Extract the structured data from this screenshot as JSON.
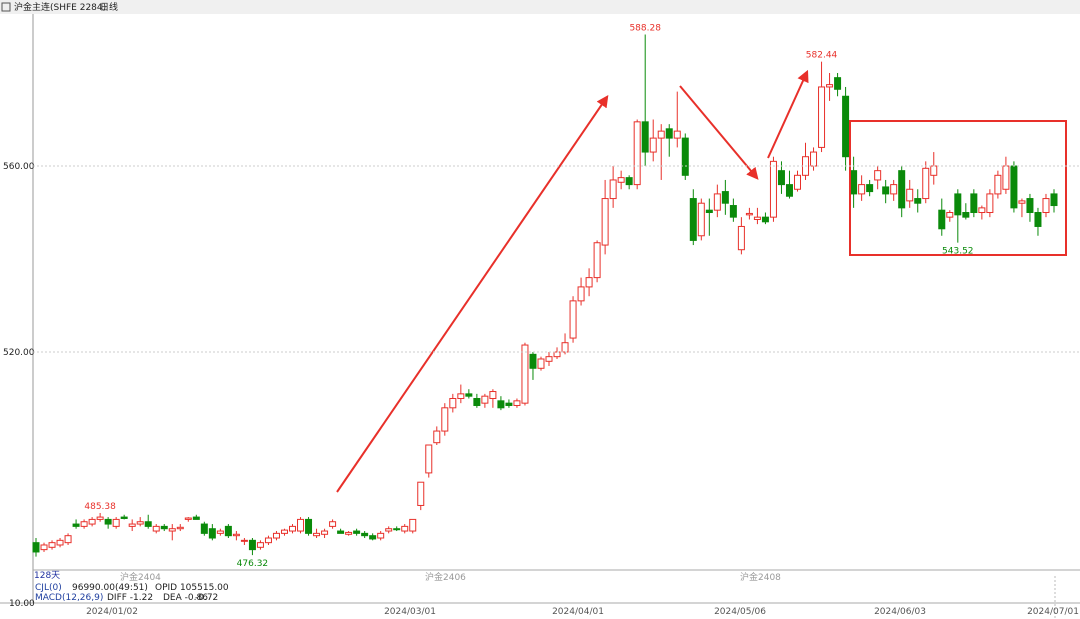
{
  "header": {
    "symbol": "沪金主连(SHFE 2284)",
    "period": "日线"
  },
  "chart_data": {
    "type": "candlestick",
    "ylim": [
      473.12,
      592.69
    ],
    "yticks": [
      {
        "value": 560,
        "label": "560.00"
      },
      {
        "value": 520,
        "label": "520.00"
      }
    ],
    "grid": true,
    "up_color": "#e8302a",
    "down_color": "#0a8a0a",
    "ohlc": [
      [
        479,
        480,
        476,
        477
      ],
      [
        477.5,
        479,
        477,
        478.5
      ],
      [
        478,
        479.5,
        477.5,
        479
      ],
      [
        478.5,
        480,
        478,
        479.5
      ],
      [
        479,
        481,
        478.5,
        480.5
      ],
      [
        483,
        484,
        482,
        482.5
      ],
      [
        482.5,
        484,
        482,
        483.5
      ],
      [
        483,
        484.5,
        482.5,
        484
      ],
      [
        484,
        485.38,
        483.5,
        484.5
      ],
      [
        484,
        484.5,
        482,
        483
      ],
      [
        482.5,
        484.5,
        482,
        484
      ],
      [
        484.5,
        485,
        484,
        484.2
      ],
      [
        482.5,
        484,
        481.5,
        483
      ],
      [
        483,
        484.5,
        482.5,
        483.5
      ],
      [
        483.5,
        485,
        482,
        482.5
      ],
      [
        481.5,
        483,
        481,
        482.5
      ],
      [
        482.5,
        483,
        481.5,
        482
      ],
      [
        481.5,
        483,
        479.5,
        482
      ],
      [
        482,
        483,
        481.5,
        482.3
      ],
      [
        484,
        484.5,
        483.5,
        484.3
      ],
      [
        484.5,
        485,
        484,
        484
      ],
      [
        483,
        483.5,
        480.5,
        481
      ],
      [
        482,
        483,
        479.5,
        480
      ],
      [
        481,
        482,
        480.5,
        481.5
      ],
      [
        482.5,
        483,
        480,
        480.5
      ],
      [
        480.5,
        481.5,
        479.5,
        480.8
      ],
      [
        479.5,
        480,
        478.5,
        479.5
      ],
      [
        479.5,
        480,
        476.32,
        477.5
      ],
      [
        478,
        479.5,
        477.5,
        479
      ],
      [
        479,
        480.5,
        478.5,
        480
      ],
      [
        480,
        481.5,
        479.5,
        481
      ],
      [
        481,
        482,
        480.5,
        481.7
      ],
      [
        481.5,
        483,
        481,
        482.5
      ],
      [
        481.5,
        484.5,
        481,
        484
      ],
      [
        484,
        484.5,
        480.5,
        481
      ],
      [
        480.5,
        482,
        480,
        481
      ],
      [
        480.8,
        482,
        480,
        481.5
      ],
      [
        482.5,
        484,
        482,
        483.5
      ],
      [
        481.5,
        482,
        481,
        481
      ],
      [
        480.8,
        481.5,
        480.5,
        481.2
      ],
      [
        481.5,
        482,
        480.5,
        481
      ],
      [
        481,
        481.5,
        480,
        480.5
      ],
      [
        480.5,
        481,
        479.5,
        479.8
      ],
      [
        480,
        481.5,
        479.5,
        481
      ],
      [
        481.5,
        482.5,
        481,
        482
      ],
      [
        482,
        482.5,
        481.5,
        481.8
      ],
      [
        481.5,
        483,
        481,
        482.5
      ],
      [
        481.5,
        484,
        481,
        484
      ],
      [
        487,
        492,
        486,
        492
      ],
      [
        494,
        500,
        493,
        500
      ],
      [
        500.5,
        504,
        500,
        503
      ],
      [
        503,
        509,
        502,
        508
      ],
      [
        508,
        511,
        507,
        510
      ],
      [
        510,
        513,
        509,
        511
      ],
      [
        511,
        512,
        510,
        510.5
      ],
      [
        510,
        511,
        508,
        508.5
      ],
      [
        509,
        511,
        508,
        510.5
      ],
      [
        510,
        512,
        508,
        511.5
      ],
      [
        509.5,
        510.5,
        507.5,
        508
      ],
      [
        509,
        509.8,
        508,
        508.5
      ],
      [
        508.5,
        510,
        508,
        509.5
      ],
      [
        509,
        522,
        508.5,
        521.5
      ],
      [
        519.5,
        520,
        514,
        516.5
      ],
      [
        516.5,
        519,
        516,
        518.5
      ],
      [
        518,
        520,
        517,
        519
      ],
      [
        519,
        521,
        518.5,
        520
      ],
      [
        520,
        524,
        519.5,
        522
      ],
      [
        523,
        532,
        522,
        531
      ],
      [
        531,
        536,
        530,
        534
      ],
      [
        534,
        538,
        532,
        536
      ],
      [
        536,
        544,
        535,
        543.5
      ],
      [
        543,
        557,
        541,
        553
      ],
      [
        553,
        560,
        551,
        557
      ],
      [
        556.5,
        559,
        555,
        557.5
      ],
      [
        557.5,
        558,
        555,
        556
      ],
      [
        556,
        570,
        555,
        569.5
      ],
      [
        569.5,
        588.28,
        560,
        563
      ],
      [
        563,
        570,
        561,
        566
      ],
      [
        566,
        569,
        557,
        567.5
      ],
      [
        568,
        569,
        562,
        566
      ],
      [
        566,
        576,
        564,
        567.5
      ],
      [
        566,
        567,
        557,
        558
      ],
      [
        553,
        555,
        543,
        544
      ],
      [
        545,
        553,
        544,
        552
      ],
      [
        550.5,
        553,
        545,
        550
      ],
      [
        550.5,
        556,
        549,
        554
      ],
      [
        554.5,
        557,
        549.5,
        552
      ],
      [
        551.5,
        553,
        548,
        549
      ],
      [
        542,
        549,
        541,
        547
      ],
      [
        549.5,
        551,
        548.5,
        549.8
      ],
      [
        548.5,
        551,
        547.5,
        549
      ],
      [
        549,
        550,
        547.5,
        548
      ],
      [
        549,
        562,
        548,
        561
      ],
      [
        559,
        561,
        554,
        556
      ],
      [
        556,
        559,
        553,
        553.5
      ],
      [
        555,
        559,
        554.5,
        558
      ],
      [
        558,
        565,
        557,
        562
      ],
      [
        560,
        564,
        559,
        563
      ],
      [
        564,
        582.44,
        563,
        577
      ],
      [
        577,
        580,
        574,
        577.5
      ],
      [
        579,
        580,
        575,
        576.5
      ],
      [
        575,
        577,
        559,
        562
      ],
      [
        559,
        562,
        551,
        554
      ],
      [
        554,
        558,
        552.5,
        556
      ],
      [
        556,
        557,
        553.5,
        554.5
      ],
      [
        557,
        560,
        555,
        559
      ],
      [
        555.5,
        557,
        552,
        554
      ],
      [
        554,
        557,
        552.5,
        556
      ],
      [
        559,
        560,
        549,
        551
      ],
      [
        552.5,
        557,
        551,
        555
      ],
      [
        553,
        555,
        550,
        552
      ],
      [
        553,
        561,
        552,
        559.5
      ],
      [
        558,
        563,
        556,
        560
      ],
      [
        550.5,
        553,
        545,
        546.5
      ],
      [
        549,
        550.5,
        548,
        550
      ],
      [
        554,
        555,
        543.52,
        549.5
      ],
      [
        550,
        552,
        548.5,
        549
      ],
      [
        554,
        555,
        549,
        550
      ],
      [
        550,
        551.5,
        548.5,
        551
      ],
      [
        550,
        555,
        549,
        554
      ],
      [
        554,
        559,
        553,
        558
      ],
      [
        555,
        562,
        554,
        560
      ],
      [
        560,
        561,
        550,
        551
      ],
      [
        552,
        553,
        549,
        552.5
      ],
      [
        553,
        554,
        548,
        550
      ],
      [
        550,
        551,
        545,
        547
      ],
      [
        550,
        554,
        549,
        553
      ],
      [
        554,
        555,
        550,
        551.5
      ]
    ],
    "annotations": [
      {
        "label": "588.28",
        "value": 588.28
      },
      {
        "label": "582.44",
        "value": 582.44
      },
      {
        "label": "485.38",
        "value": 485.38
      },
      {
        "label": "476.32",
        "value": 476.32
      },
      {
        "label": "543.52",
        "value": 543.52
      }
    ],
    "x_labels": [
      "2024/01/02",
      "2024/03/01",
      "2024/04/01",
      "2024/05/06",
      "2024/06/03",
      "2024/07/01"
    ],
    "contracts": [
      "沪金2404",
      "沪金2406",
      "沪金2408"
    ],
    "days": "128天"
  },
  "indicators": {
    "volume": {
      "name": "CJL(0)",
      "value": "96990.00(49:51)",
      "oi": "OPID 105515.00"
    },
    "macd": {
      "name": "MACD(12,26,9)",
      "diff": "DIFF -1.22",
      "dea": "DEA -0.86",
      "macd": "-0.72"
    },
    "axis_label": "10.00"
  }
}
